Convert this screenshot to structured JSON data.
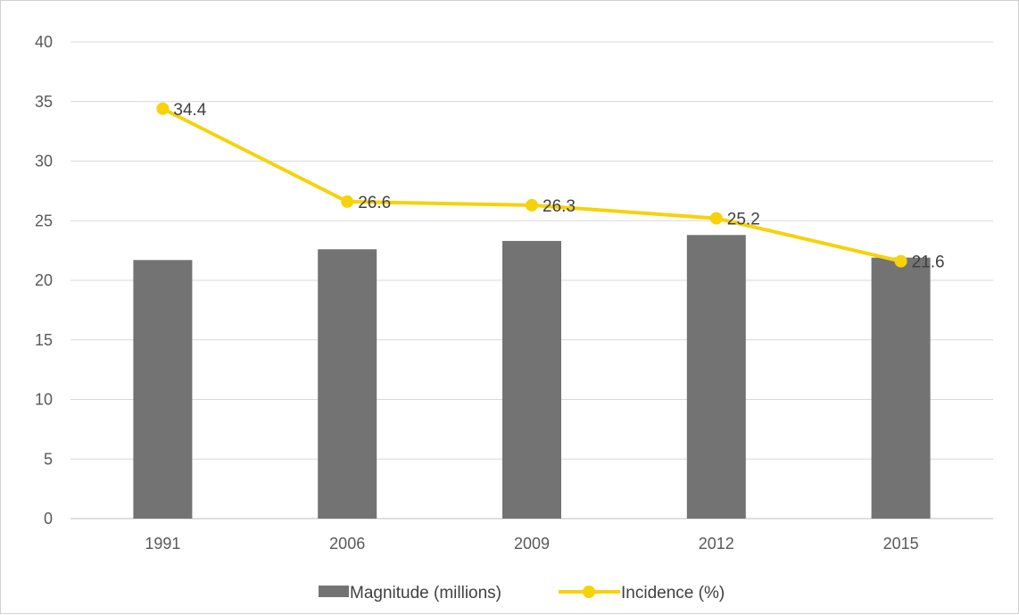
{
  "chart_data": {
    "type": "bar",
    "title": "",
    "xlabel": "",
    "ylabel": "",
    "categories": [
      "1991",
      "2006",
      "2009",
      "2012",
      "2015"
    ],
    "ylim": [
      0,
      40
    ],
    "yticks": [
      0,
      5,
      10,
      15,
      20,
      25,
      30,
      35,
      40
    ],
    "grid": true,
    "legend_position": "bottom",
    "series": [
      {
        "name": "Magnitude (millions)",
        "type": "bar",
        "color": "#737373",
        "values": [
          21.7,
          22.6,
          23.3,
          23.8,
          21.9
        ]
      },
      {
        "name": "Incidence (%)",
        "type": "line",
        "color": "#f6d20a",
        "marker": "circle",
        "values": [
          34.4,
          26.6,
          26.3,
          25.2,
          21.6
        ],
        "data_labels": [
          "34.4",
          "26.6",
          "26.3",
          "25.2",
          "21.6"
        ]
      }
    ]
  }
}
